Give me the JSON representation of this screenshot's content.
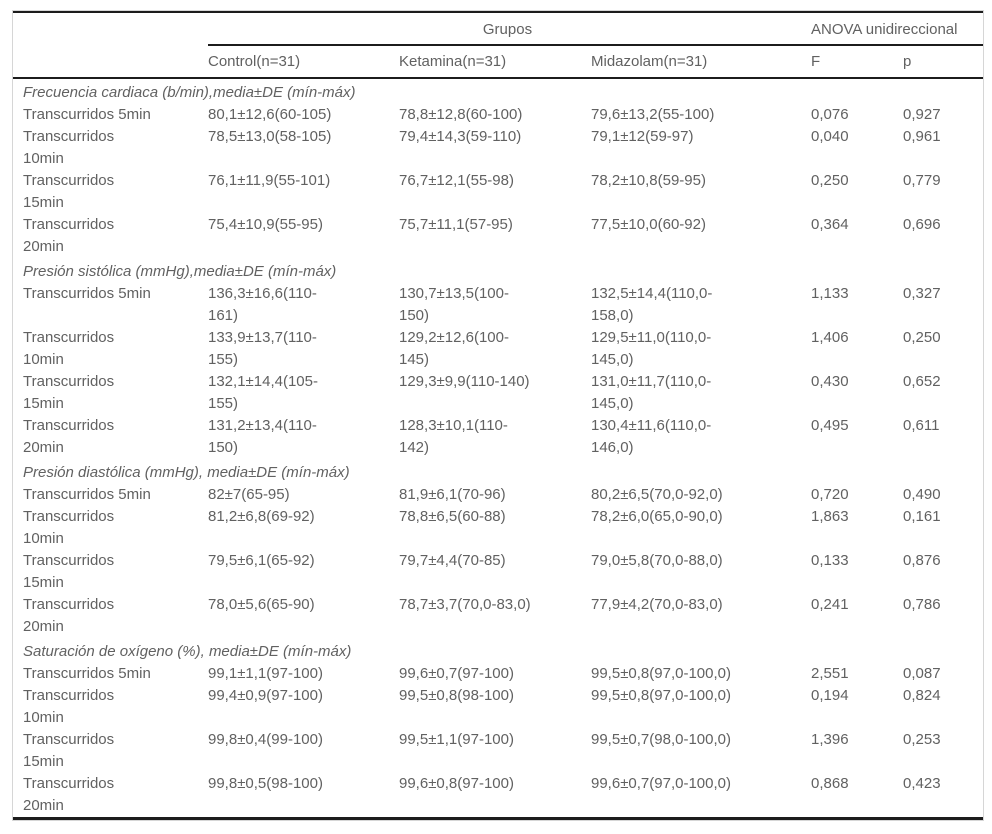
{
  "colors": {
    "text": "#616161",
    "rule": "#1c1c1c",
    "outer_border": "#d6d6d6",
    "background": "#ffffff"
  },
  "table": {
    "col_headers": {
      "grupos": "Grupos",
      "anova": "ANOVA unidireccional",
      "control": "Control(n=31)",
      "ketamina": "Ketamina(n=31)",
      "midazolam": "Midazolam(n=31)",
      "f": "F",
      "p": "p"
    },
    "sections": [
      {
        "title": "Frecuencia cardiaca (b/min),media±DE (mín-máx)",
        "rows": [
          {
            "label": "Transcurridos 5min",
            "control": "80,1±12,6(60-105)",
            "ketamina": "78,8±12,8(60-100)",
            "midazolam": "79,6±13,2(55-100)",
            "f": "0,076",
            "p": "0,927"
          },
          {
            "label": "Transcurridos\n10min",
            "control": "78,5±13,0(58-105)",
            "ketamina": "79,4±14,3(59-110)",
            "midazolam": "79,1±12(59-97)",
            "f": "0,040",
            "p": "0,961"
          },
          {
            "label": "Transcurridos\n15min",
            "control": "76,1±11,9(55-101)",
            "ketamina": "76,7±12,1(55-98)",
            "midazolam": "78,2±10,8(59-95)",
            "f": "0,250",
            "p": "0,779"
          },
          {
            "label": "Transcurridos\n20min",
            "control": "75,4±10,9(55-95)",
            "ketamina": "75,7±11,1(57-95)",
            "midazolam": "77,5±10,0(60-92)",
            "f": "0,364",
            "p": "0,696"
          }
        ]
      },
      {
        "title": "Presión sistólica (mmHg),media±DE (mín-máx)",
        "rows": [
          {
            "label": "Transcurridos 5min",
            "control": "136,3±16,6(110-\n161)",
            "ketamina": "130,7±13,5(100-\n150)",
            "midazolam": "132,5±14,4(110,0-\n158,0)",
            "f": "1,133",
            "p": "0,327"
          },
          {
            "label": "Transcurridos\n10min",
            "control": "133,9±13,7(110-\n155)",
            "ketamina": "129,2±12,6(100-\n145)",
            "midazolam": "129,5±11,0(110,0-\n145,0)",
            "f": "1,406",
            "p": "0,250"
          },
          {
            "label": "Transcurridos\n15min",
            "control": "132,1±14,4(105-\n155)",
            "ketamina": "129,3±9,9(110-140)",
            "midazolam": "131,0±11,7(110,0-\n145,0)",
            "f": "0,430",
            "p": "0,652"
          },
          {
            "label": "Transcurridos\n20min",
            "control": "131,2±13,4(110-\n150)",
            "ketamina": "128,3±10,1(110-\n142)",
            "midazolam": "130,4±11,6(110,0-\n146,0)",
            "f": "0,495",
            "p": "0,611"
          }
        ]
      },
      {
        "title": "Presión diastólica (mmHg), media±DE (mín-máx)",
        "rows": [
          {
            "label": "Transcurridos 5min",
            "control": "82±7(65-95)",
            "ketamina": "81,9±6,1(70-96)",
            "midazolam": "80,2±6,5(70,0-92,0)",
            "f": "0,720",
            "p": "0,490"
          },
          {
            "label": "Transcurridos\n10min",
            "control": "81,2±6,8(69-92)",
            "ketamina": "78,8±6,5(60-88)",
            "midazolam": "78,2±6,0(65,0-90,0)",
            "f": "1,863",
            "p": "0,161"
          },
          {
            "label": "Transcurridos\n15min",
            "control": "79,5±6,1(65-92)",
            "ketamina": "79,7±4,4(70-85)",
            "midazolam": "79,0±5,8(70,0-88,0)",
            "f": "0,133",
            "p": "0,876"
          },
          {
            "label": "Transcurridos\n20min",
            "control": "78,0±5,6(65-90)",
            "ketamina": "78,7±3,7(70,0-83,0)",
            "midazolam": "77,9±4,2(70,0-83,0)",
            "f": "0,241",
            "p": "0,786"
          }
        ]
      },
      {
        "title": "Saturación de oxígeno (%), media±DE (mín-máx)",
        "rows": [
          {
            "label": "Transcurridos 5min",
            "control": "99,1±1,1(97-100)",
            "ketamina": "99,6±0,7(97-100)",
            "midazolam": "99,5±0,8(97,0-100,0)",
            "f": "2,551",
            "p": "0,087"
          },
          {
            "label": "Transcurridos\n10min",
            "control": "99,4±0,9(97-100)",
            "ketamina": "99,5±0,8(98-100)",
            "midazolam": "99,5±0,8(97,0-100,0)",
            "f": "0,194",
            "p": "0,824"
          },
          {
            "label": "Transcurridos\n15min",
            "control": "99,8±0,4(99-100)",
            "ketamina": "99,5±1,1(97-100)",
            "midazolam": "99,5±0,7(98,0-100,0)",
            "f": "1,396",
            "p": "0,253"
          },
          {
            "label": "Transcurridos\n20min",
            "control": "99,8±0,5(98-100)",
            "ketamina": "99,6±0,8(97-100)",
            "midazolam": "99,6±0,7(97,0-100,0)",
            "f": "0,868",
            "p": "0,423"
          }
        ]
      }
    ]
  }
}
